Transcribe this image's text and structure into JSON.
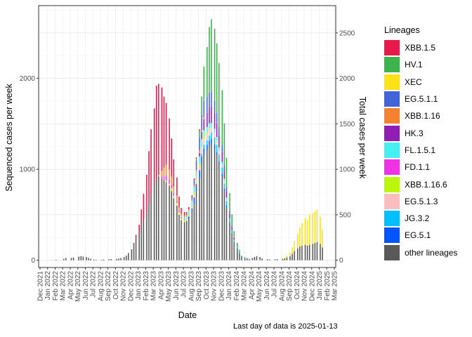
{
  "chart_data": {
    "type": "bar",
    "stacked": true,
    "xlabel": "Date",
    "ylabel": "Sequenced cases per week",
    "y2label": "Total cases per week",
    "ylim": [
      -80,
      2800
    ],
    "y_ticks": [
      0,
      1000,
      2000
    ],
    "y2_ticks": [
      0,
      500,
      1000,
      1500,
      2000,
      2500
    ],
    "y2_scale": 1.0,
    "grid": true,
    "legend_position": "right",
    "x_tick_labels": [
      "Dec 2021",
      "Jan 2022",
      "Feb 2022",
      "Mar 2022",
      "Apr 2022",
      "May 2022",
      "Jun 2022",
      "Jul 2022",
      "Aug 2022",
      "Sep 2022",
      "Oct 2022",
      "Nov 2022",
      "Dec 2022",
      "Jan 2023",
      "Feb 2023",
      "Mar 2023",
      "Apr 2023",
      "May 2023",
      "Jun 2023",
      "Jul 2023",
      "Aug 2023",
      "Sep 2023",
      "Oct 2023",
      "Nov 2023",
      "Dec 2023",
      "Jan 2024",
      "Feb 2024",
      "Mar 2024",
      "Apr 2024",
      "May 2024",
      "Jun 2024",
      "Jul 2024",
      "Aug 2024",
      "Sep 2024",
      "Oct 2024",
      "Nov 2024",
      "Dec 2024",
      "Jan 2025",
      "Feb 2025",
      "Mar 2025"
    ],
    "month_anchors": {
      "start_tick": "Dec 2021"
    },
    "legend": {
      "title": "Lineages",
      "items": [
        {
          "name": "XBB.1.5",
          "color": "#E8194B"
        },
        {
          "name": "HV.1",
          "color": "#3CB44B"
        },
        {
          "name": "XEC",
          "color": "#FFE119"
        },
        {
          "name": "EG.5.1.1",
          "color": "#4363D8"
        },
        {
          "name": "XBB.1.16",
          "color": "#F58231"
        },
        {
          "name": "HK.3",
          "color": "#911EB4"
        },
        {
          "name": "FL.1.5.1",
          "color": "#46F0F0"
        },
        {
          "name": "FD.1.1",
          "color": "#F032E6"
        },
        {
          "name": "XBB.1.16.6",
          "color": "#BCF60C"
        },
        {
          "name": "EG.5.1.3",
          "color": "#FABEBE"
        },
        {
          "name": "JG.3.2",
          "color": "#00BFFF"
        },
        {
          "name": "EG.5.1",
          "color": "#0055FF"
        },
        {
          "name": "other lineages",
          "color": "#595959"
        }
      ]
    },
    "series_weekly": [
      {
        "month": "Feb 2022",
        "other": 5
      },
      {
        "month": "Mar 2022",
        "other": 15
      },
      {
        "month": "Mar 2022",
        "other": 20,
        "XBB.1.5": 5
      },
      {
        "month": "Apr 2022",
        "other": 25
      },
      {
        "month": "Apr 2022",
        "other": 30
      },
      {
        "month": "May 2022",
        "other": 40
      },
      {
        "month": "May 2022",
        "other": 45
      },
      {
        "month": "May 2022",
        "other": 40
      },
      {
        "month": "Jun 2022",
        "other": 35
      },
      {
        "month": "Jun 2022",
        "other": 25
      },
      {
        "month": "Jun 2022",
        "other": 15
      },
      {
        "month": "Jul 2022",
        "other": 8
      },
      {
        "month": "Jul 2022",
        "other": 5
      },
      {
        "month": "Aug 2022",
        "other": 5
      },
      {
        "month": "Aug 2022",
        "other": 8
      },
      {
        "month": "Sep 2022",
        "other": 10
      },
      {
        "month": "Sep 2022",
        "other": 12
      },
      {
        "month": "Oct 2022",
        "other": 15
      },
      {
        "month": "Oct 2022",
        "other": 18
      },
      {
        "month": "Oct 2022",
        "other": 25
      },
      {
        "month": "Nov 2022",
        "other": 35
      },
      {
        "month": "Nov 2022",
        "other": 50
      },
      {
        "month": "Nov 2022",
        "other": 80
      },
      {
        "month": "Dec 2022",
        "other": 120
      },
      {
        "month": "Dec 2022",
        "other": 180,
        "XBB.1.5": 10
      },
      {
        "month": "Dec 2022",
        "other": 240,
        "XBB.1.5": 40
      },
      {
        "month": "Jan 2023",
        "other": 300,
        "XBB.1.5": 90
      },
      {
        "month": "Jan 2023",
        "other": 380,
        "XBB.1.5": 180
      },
      {
        "month": "Jan 2023",
        "other": 450,
        "XBB.1.5": 280
      },
      {
        "month": "Feb 2023",
        "other": 520,
        "XBB.1.5": 420
      },
      {
        "month": "Feb 2023",
        "other": 620,
        "XBB.1.5": 580
      },
      {
        "month": "Feb 2023",
        "other": 720,
        "XBB.1.5": 720
      },
      {
        "month": "Mar 2023",
        "other": 820,
        "XBB.1.5": 850
      },
      {
        "month": "Mar 2023",
        "other": 900,
        "XBB.1.5": 1020
      },
      {
        "month": "Mar 2023",
        "other": 920,
        "XBB.1.5": 1000,
        "XBB.1.16": 20
      },
      {
        "month": "Apr 2023",
        "other": 900,
        "XBB.1.5": 920,
        "XBB.1.16": 60,
        "FD.1.1": 20
      },
      {
        "month": "Apr 2023",
        "other": 880,
        "XBB.1.5": 780,
        "XBB.1.16": 100,
        "FD.1.1": 40
      },
      {
        "month": "Apr 2023",
        "other": 860,
        "XBB.1.5": 680,
        "XBB.1.16": 120,
        "FD.1.1": 60,
        "XBB.1.16.6": 10
      },
      {
        "month": "May 2023",
        "other": 820,
        "XBB.1.5": 560,
        "XBB.1.16": 110,
        "FD.1.1": 50,
        "XBB.1.16.6": 20
      },
      {
        "month": "May 2023",
        "other": 760,
        "XBB.1.5": 420,
        "XBB.1.16": 90,
        "FD.1.1": 40,
        "XBB.1.16.6": 30
      },
      {
        "month": "May 2023",
        "other": 680,
        "XBB.1.5": 300,
        "XBB.1.16": 70,
        "FD.1.1": 30,
        "XBB.1.16.6": 30
      },
      {
        "month": "Jun 2023",
        "other": 600,
        "XBB.1.5": 200,
        "XBB.1.16": 60,
        "FD.1.1": 20,
        "XBB.1.16.6": 30
      },
      {
        "month": "Jun 2023",
        "other": 500,
        "XBB.1.5": 120,
        "XBB.1.16": 40,
        "FD.1.1": 15,
        "XBB.1.16.6": 25
      },
      {
        "month": "Jun 2023",
        "other": 440,
        "XBB.1.5": 60,
        "XBB.1.16": 30,
        "FD.1.1": 15,
        "XBB.1.16.6": 20,
        "FL.1.5.1": 10
      },
      {
        "month": "Jul 2023",
        "other": 420,
        "XBB.1.5": 40,
        "XBB.1.16": 20,
        "FD.1.1": 10,
        "XBB.1.16.6": 20,
        "FL.1.5.1": 20
      },
      {
        "month": "Jul 2023",
        "other": 420,
        "XBB.1.5": 30,
        "XBB.1.16": 20,
        "XBB.1.16.6": 20,
        "FL.1.5.1": 30,
        "EG.5.1": 10
      },
      {
        "month": "Jul 2023",
        "other": 450,
        "XBB.1.5": 25,
        "XBB.1.16": 20,
        "XBB.1.16.6": 20,
        "FL.1.5.1": 40,
        "EG.5.1": 30
      },
      {
        "month": "Aug 2023",
        "other": 520,
        "XBB.1.5": 20,
        "XBB.1.16": 20,
        "XBB.1.16.6": 25,
        "FL.1.5.1": 50,
        "EG.5.1": 50,
        "EG.5.1.1": 30
      },
      {
        "month": "Aug 2023",
        "other": 620,
        "XBB.1.5": 15,
        "XBB.1.16": 25,
        "XBB.1.16.6": 30,
        "FL.1.5.1": 60,
        "EG.5.1": 70,
        "EG.5.1.1": 60,
        "EG.5.1.3": 20
      },
      {
        "month": "Aug 2023",
        "other": 760,
        "XBB.1.5": 15,
        "XBB.1.16": 25,
        "XBB.1.16.6": 30,
        "FL.1.5.1": 70,
        "EG.5.1": 80,
        "EG.5.1.1": 100,
        "EG.5.1.3": 30,
        "HV.1": 20
      },
      {
        "month": "Sep 2023",
        "other": 900,
        "XBB.1.5": 15,
        "XBB.1.16": 25,
        "XBB.1.16.6": 30,
        "FL.1.5.1": 80,
        "EG.5.1": 90,
        "EG.5.1.1": 140,
        "EG.5.1.3": 40,
        "HK.3": 40,
        "HV.1": 80
      },
      {
        "month": "Sep 2023",
        "other": 1050,
        "XBB.1.16": 20,
        "XBB.1.16.6": 30,
        "FL.1.5.1": 80,
        "EG.5.1": 90,
        "EG.5.1.1": 170,
        "EG.5.1.3": 50,
        "HK.3": 80,
        "JG.3.2": 30,
        "HV.1": 200
      },
      {
        "month": "Sep 2023",
        "other": 1150,
        "XBB.1.16": 20,
        "XBB.1.16.6": 30,
        "FL.1.5.1": 70,
        "EG.5.1": 80,
        "EG.5.1.1": 180,
        "EG.5.1.3": 60,
        "HK.3": 120,
        "JG.3.2": 40,
        "HV.1": 380
      },
      {
        "month": "Oct 2023",
        "other": 1200,
        "XBB.1.16.6": 25,
        "FL.1.5.1": 60,
        "EG.5.1": 70,
        "EG.5.1.1": 180,
        "EG.5.1.3": 60,
        "HK.3": 150,
        "JG.3.2": 50,
        "HV.1": 550
      },
      {
        "month": "Oct 2023",
        "other": 1250,
        "XBB.1.16.6": 20,
        "FL.1.5.1": 55,
        "EG.5.1": 60,
        "EG.5.1.1": 170,
        "EG.5.1.3": 60,
        "HK.3": 170,
        "JG.3.2": 60,
        "HV.1": 720
      },
      {
        "month": "Oct 2023",
        "other": 1280,
        "FL.1.5.1": 50,
        "EG.5.1": 55,
        "EG.5.1.1": 160,
        "EG.5.1.3": 55,
        "HK.3": 180,
        "JG.3.2": 70,
        "HV.1": 800
      },
      {
        "month": "Nov 2023",
        "other": 1220,
        "FL.1.5.1": 45,
        "EG.5.1": 50,
        "EG.5.1.1": 140,
        "EG.5.1.3": 50,
        "HK.3": 170,
        "JG.3.2": 80,
        "HV.1": 790
      },
      {
        "month": "Nov 2023",
        "other": 1150,
        "FL.1.5.1": 40,
        "EG.5.1": 40,
        "EG.5.1.1": 120,
        "EG.5.1.3": 45,
        "HK.3": 150,
        "JG.3.2": 80,
        "HV.1": 760
      },
      {
        "month": "Nov 2023",
        "other": 1050,
        "FL.1.5.1": 35,
        "EG.5.1": 35,
        "EG.5.1.1": 100,
        "EG.5.1.3": 40,
        "HK.3": 130,
        "JG.3.2": 80,
        "HV.1": 700
      },
      {
        "month": "Dec 2023",
        "other": 920,
        "FL.1.5.1": 30,
        "EG.5.1": 30,
        "EG.5.1.1": 80,
        "EG.5.1.3": 30,
        "HK.3": 110,
        "JG.3.2": 70,
        "HV.1": 600
      },
      {
        "month": "Dec 2023",
        "other": 760,
        "FL.1.5.1": 25,
        "EG.5.1": 25,
        "EG.5.1.1": 60,
        "EG.5.1.3": 25,
        "HK.3": 90,
        "JG.3.2": 60,
        "HV.1": 460
      },
      {
        "month": "Dec 2023",
        "other": 580,
        "FL.1.5.1": 20,
        "EG.5.1": 20,
        "EG.5.1.1": 45,
        "EG.5.1.3": 20,
        "HK.3": 70,
        "JG.3.2": 50,
        "HV.1": 320
      },
      {
        "month": "Jan 2024",
        "other": 420,
        "EG.5.1.1": 30,
        "HK.3": 50,
        "JG.3.2": 40,
        "HV.1": 200
      },
      {
        "month": "Jan 2024",
        "other": 300,
        "EG.5.1.1": 20,
        "HK.3": 35,
        "JG.3.2": 30,
        "HV.1": 120
      },
      {
        "month": "Jan 2024",
        "other": 200,
        "HK.3": 25,
        "JG.3.2": 25,
        "HV.1": 70
      },
      {
        "month": "Feb 2024",
        "other": 130,
        "JG.3.2": 20,
        "HV.1": 40
      },
      {
        "month": "Feb 2024",
        "other": 80,
        "JG.3.2": 15,
        "HV.1": 20
      },
      {
        "month": "Feb 2024",
        "other": 40,
        "JG.3.2": 10
      },
      {
        "month": "Mar 2024",
        "other": 25,
        "JG.3.2": 8
      },
      {
        "month": "Mar 2024",
        "other": 20,
        "JG.3.2": 5
      },
      {
        "month": "Mar 2024",
        "other": 15
      },
      {
        "month": "Apr 2024",
        "other": 25
      },
      {
        "month": "Apr 2024",
        "other": 35
      },
      {
        "month": "Apr 2024",
        "other": 45
      },
      {
        "month": "May 2024",
        "other": 35
      },
      {
        "month": "May 2024",
        "other": 20
      },
      {
        "month": "Jun 2024",
        "other": 10
      },
      {
        "month": "Jun 2024",
        "other": 8
      },
      {
        "month": "Jul 2024",
        "other": 10
      },
      {
        "month": "Jul 2024",
        "other": 12
      },
      {
        "month": "Aug 2024",
        "other": 15,
        "XEC": 5
      },
      {
        "month": "Aug 2024",
        "other": 20,
        "XEC": 10
      },
      {
        "month": "Aug 2024",
        "other": 30,
        "XEC": 20
      },
      {
        "month": "Sep 2024",
        "other": 45,
        "XEC": 40
      },
      {
        "month": "Sep 2024",
        "other": 70,
        "XEC": 70
      },
      {
        "month": "Sep 2024",
        "other": 100,
        "XEC": 110
      },
      {
        "month": "Oct 2024",
        "other": 130,
        "XEC": 160
      },
      {
        "month": "Oct 2024",
        "other": 150,
        "XEC": 210
      },
      {
        "month": "Oct 2024",
        "other": 160,
        "XEC": 250
      },
      {
        "month": "Nov 2024",
        "other": 170,
        "XEC": 290
      },
      {
        "month": "Nov 2024",
        "other": 160,
        "XEC": 280
      },
      {
        "month": "Nov 2024",
        "other": 170,
        "XEC": 330
      },
      {
        "month": "Dec 2024",
        "other": 180,
        "XEC": 340
      },
      {
        "month": "Dec 2024",
        "other": 190,
        "XEC": 350
      },
      {
        "month": "Dec 2024",
        "other": 200,
        "XEC": 360
      },
      {
        "month": "Jan 2025",
        "other": 180,
        "XEC": 300
      },
      {
        "month": "Jan 2025",
        "other": 140,
        "XEC": 200
      }
    ]
  },
  "caption": "Last day of data is 2025-01-13"
}
